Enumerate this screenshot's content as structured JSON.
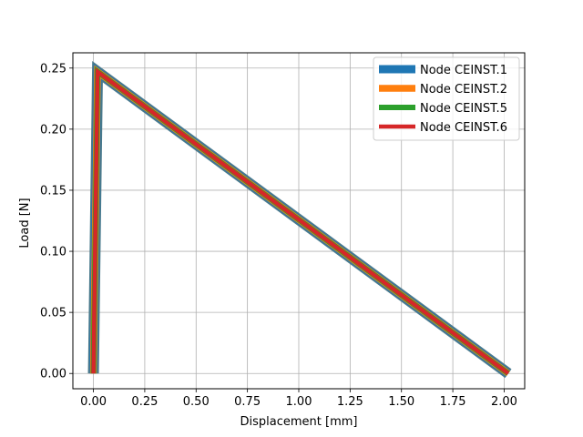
{
  "chart_data": {
    "type": "line",
    "title": "",
    "xlabel": "Displacement [mm]",
    "ylabel": "Load [N]",
    "xlim": [
      -0.1,
      2.1
    ],
    "ylim": [
      -0.0125,
      0.2625
    ],
    "xticks": [
      0.0,
      0.25,
      0.5,
      0.75,
      1.0,
      1.25,
      1.5,
      1.75,
      2.0
    ],
    "xtick_labels": [
      "0.00",
      "0.25",
      "0.50",
      "0.75",
      "1.00",
      "1.25",
      "1.50",
      "1.75",
      "2.00"
    ],
    "yticks": [
      0.0,
      0.05,
      0.1,
      0.15,
      0.2,
      0.25
    ],
    "ytick_labels": [
      "0.00",
      "0.05",
      "0.10",
      "0.15",
      "0.20",
      "0.25"
    ],
    "grid": true,
    "legend_position": "top-right",
    "series": [
      {
        "name": "Node CEINST.1",
        "color": "#1f77b4",
        "linewidth": 9,
        "x": [
          0.0,
          0.02,
          2.02
        ],
        "y": [
          0.0,
          0.247,
          0.0
        ]
      },
      {
        "name": "Node CEINST.2",
        "color": "#ff7f0e",
        "linewidth": 7.5,
        "x": [
          0.0,
          0.02,
          2.02
        ],
        "y": [
          0.0,
          0.247,
          0.0
        ]
      },
      {
        "name": "Node CEINST.5",
        "color": "#2ca02c",
        "linewidth": 6,
        "x": [
          0.0,
          0.02,
          2.02
        ],
        "y": [
          0.0,
          0.247,
          0.0
        ]
      },
      {
        "name": "Node CEINST.6",
        "color": "#d62728",
        "linewidth": 4.5,
        "x": [
          0.0,
          0.02,
          2.02
        ],
        "y": [
          0.0,
          0.247,
          0.0
        ]
      }
    ]
  }
}
